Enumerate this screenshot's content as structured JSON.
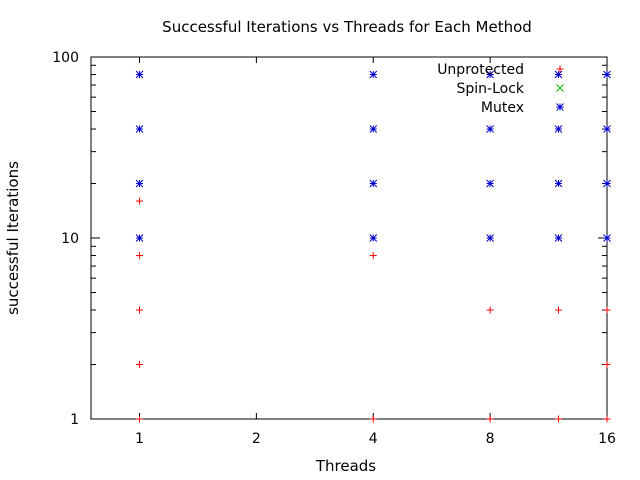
{
  "chart_data": {
    "type": "scatter",
    "title": "Successful Iterations vs Threads for Each Method",
    "xlabel": "Threads",
    "ylabel": "successful Iterations",
    "x_scale": "log2",
    "y_scale": "log10",
    "xlim": [
      0.75,
      16
    ],
    "ylim": [
      1,
      100
    ],
    "x_ticks": [
      {
        "value": 1,
        "label": "1"
      },
      {
        "value": 2,
        "label": "2"
      },
      {
        "value": 4,
        "label": "4"
      },
      {
        "value": 8,
        "label": "8"
      },
      {
        "value": 16,
        "label": "16"
      }
    ],
    "y_ticks": [
      {
        "value": 1,
        "label": "1"
      },
      {
        "value": 10,
        "label": "10"
      },
      {
        "value": 100,
        "label": "100"
      }
    ],
    "grid": false,
    "legend": "top-right",
    "series": [
      {
        "name": "Unprotected",
        "marker": "plus",
        "color": "#ff0000",
        "points": [
          [
            1,
            1
          ],
          [
            1,
            2
          ],
          [
            1,
            4
          ],
          [
            1,
            8
          ],
          [
            1,
            16
          ],
          [
            4,
            1
          ],
          [
            4,
            8
          ],
          [
            8,
            1
          ],
          [
            8,
            4
          ],
          [
            12,
            1
          ],
          [
            12,
            4
          ],
          [
            16,
            1
          ],
          [
            16,
            2
          ],
          [
            16,
            4
          ]
        ]
      },
      {
        "name": "Spin-Lock",
        "marker": "cross",
        "color": "#00c000",
        "points": []
      },
      {
        "name": "Mutex",
        "marker": "star",
        "color": "#0000cc",
        "points": [
          [
            1,
            10
          ],
          [
            1,
            20
          ],
          [
            1,
            40
          ],
          [
            1,
            80
          ],
          [
            4,
            10
          ],
          [
            4,
            20
          ],
          [
            4,
            40
          ],
          [
            4,
            80
          ],
          [
            8,
            10
          ],
          [
            8,
            20
          ],
          [
            8,
            40
          ],
          [
            8,
            80
          ],
          [
            12,
            10
          ],
          [
            12,
            20
          ],
          [
            12,
            40
          ],
          [
            12,
            80
          ],
          [
            16,
            10
          ],
          [
            16,
            20
          ],
          [
            16,
            40
          ],
          [
            16,
            80
          ]
        ]
      }
    ]
  }
}
